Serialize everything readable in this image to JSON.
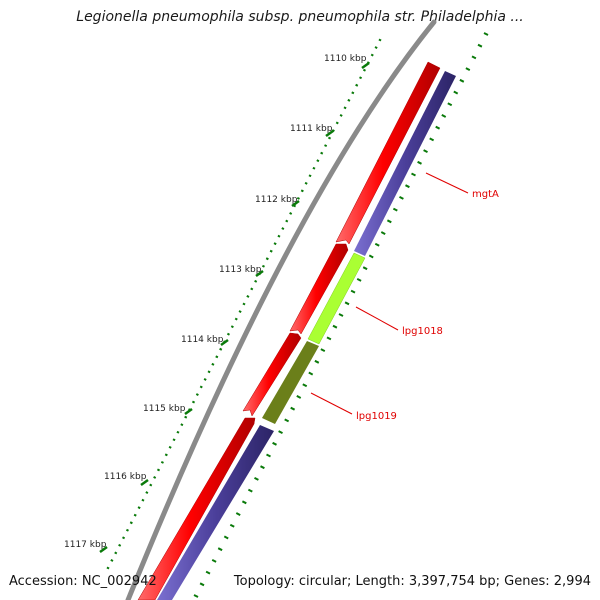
{
  "title": "Legionella pneumophila subsp. pneumophila str. Philadelphia ...",
  "footer": {
    "accession": "Accession: NC_002942",
    "info": "Topology: circular; Length: 3,397,754 bp; Genes: 2,994"
  },
  "ticks": [
    "1110 kbp",
    "1111 kbp",
    "1112 kbp",
    "1113 kbp",
    "1114 kbp",
    "1115 kbp",
    "1116 kbp",
    "1117 kbp"
  ],
  "genes": [
    {
      "name": "mgtA",
      "color": "#e00000"
    },
    {
      "name": "lpg1018",
      "color": "#e00000"
    },
    {
      "name": "lpg1019",
      "color": "#e00000"
    }
  ],
  "colors": {
    "backbone": "#8a8a8a",
    "cds_track": "#ff0000",
    "gene_mgtA": "#4b3f9a",
    "gene_lpg1018": "#aaff33",
    "gene_lpg1019": "#6b7f1a",
    "tick_major": "#0a7a0a",
    "label_line": "#e00000"
  }
}
